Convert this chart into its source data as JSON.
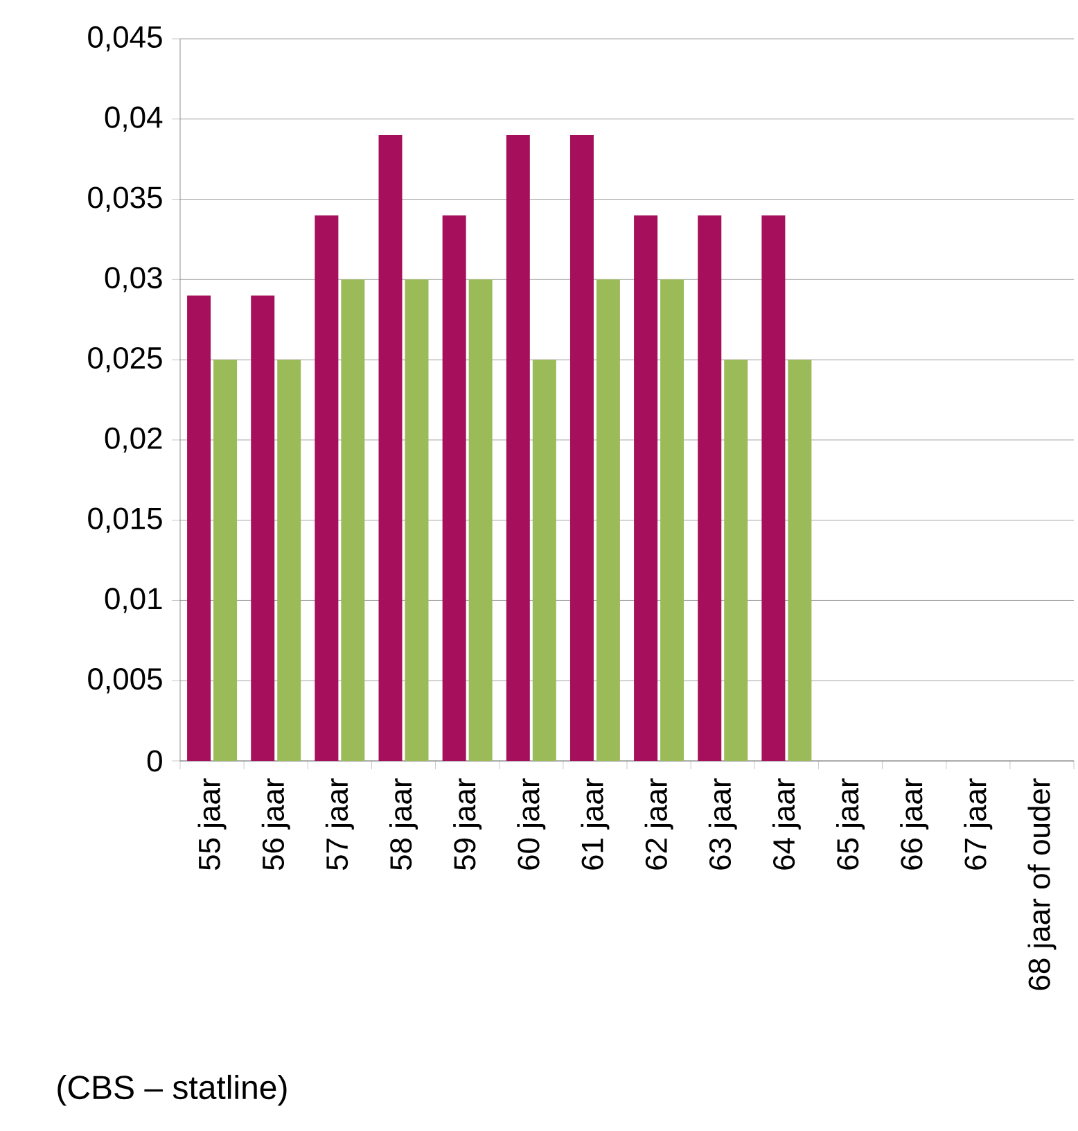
{
  "chart_data": {
    "type": "bar",
    "categories": [
      "55 jaar",
      "56 jaar",
      "57 jaar",
      "58 jaar",
      "59 jaar",
      "60 jaar",
      "61 jaar",
      "62 jaar",
      "63 jaar",
      "64 jaar",
      "65 jaar",
      "66 jaar",
      "67 jaar",
      "68 jaar of ouder"
    ],
    "series": [
      {
        "color": "#a50f5c",
        "values": [
          0.029,
          0.029,
          0.034,
          0.039,
          0.034,
          0.039,
          0.039,
          0.034,
          0.034,
          0.034,
          null,
          null,
          null,
          null
        ]
      },
      {
        "color": "#9bbb59",
        "values": [
          0.025,
          0.025,
          0.03,
          0.03,
          0.03,
          0.025,
          0.03,
          0.03,
          0.025,
          0.025,
          null,
          null,
          null,
          null
        ]
      }
    ],
    "ylim": [
      0,
      0.045
    ],
    "yticks": [
      {
        "value": 0,
        "label": "0"
      },
      {
        "value": 0.005,
        "label": "0,005"
      },
      {
        "value": 0.01,
        "label": "0,01"
      },
      {
        "value": 0.015,
        "label": "0,015"
      },
      {
        "value": 0.02,
        "label": "0,02"
      },
      {
        "value": 0.025,
        "label": "0,025"
      },
      {
        "value": 0.03,
        "label": "0,03"
      },
      {
        "value": 0.035,
        "label": "0,035"
      },
      {
        "value": 0.04,
        "label": "0,04"
      },
      {
        "value": 0.045,
        "label": "0,045"
      }
    ],
    "grid": "y",
    "annotations": [
      "(CBS – statline)"
    ]
  }
}
